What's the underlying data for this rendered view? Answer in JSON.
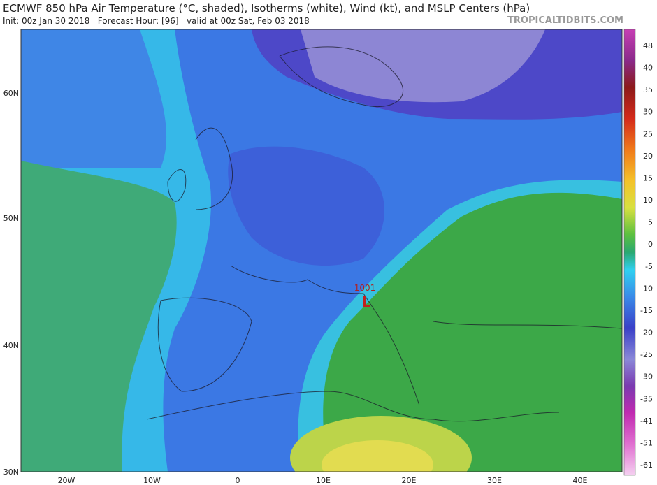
{
  "header": {
    "title": "ECMWF 850 hPa Air Temperature (°C, shaded), Isotherms (white), Wind (kt), and MSLP Centers (hPa)",
    "subtitle": "Init: 00z Jan 30 2018   Forecast Hour: [96]   valid at 00z Sat, Feb 03 2018",
    "credit": "TROPICALTIDBITS.COM"
  },
  "map": {
    "lat_labels": [
      "60N",
      "50N",
      "40N",
      "30N"
    ],
    "lon_labels": [
      "20W",
      "10W",
      "0",
      "10E",
      "20E",
      "30E",
      "40E"
    ],
    "pressure_center": {
      "label": "L",
      "value": "1001"
    }
  },
  "colorbar": {
    "labels": [
      48,
      40,
      35,
      30,
      25,
      20,
      15,
      10,
      5,
      0,
      -5,
      -10,
      -15,
      -20,
      -25,
      -30,
      -35,
      -41,
      -51,
      -61
    ]
  }
}
